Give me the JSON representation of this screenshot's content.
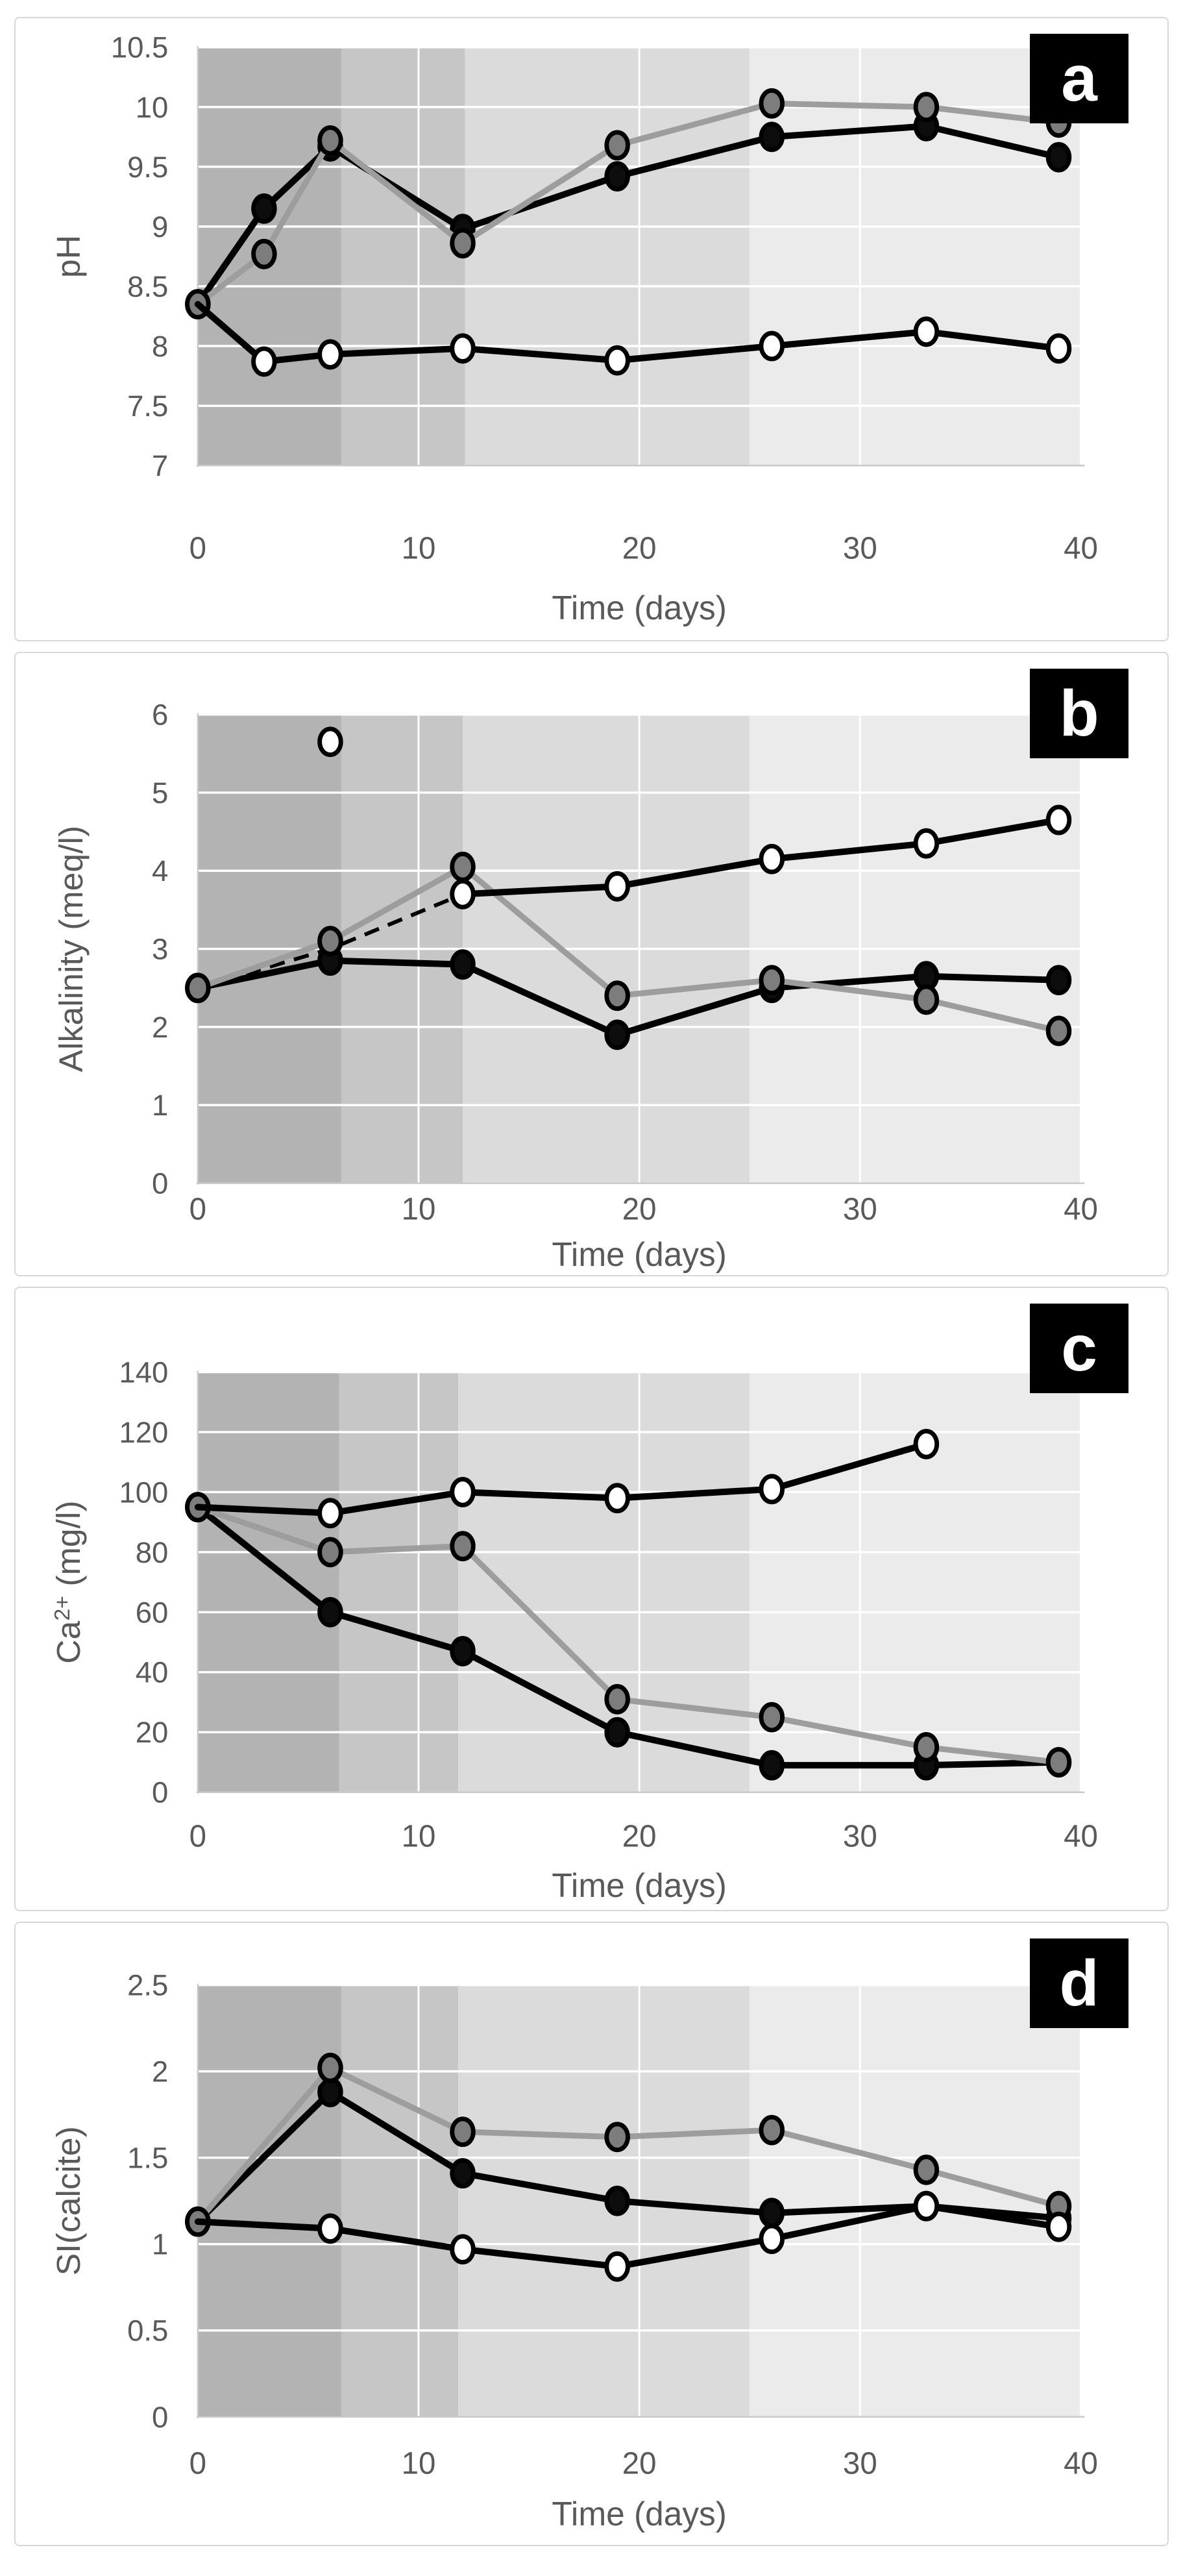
{
  "chart_data": [
    {
      "type": "line",
      "panel_label": "a",
      "xlabel": "Time (days)",
      "ylabel": "pH",
      "xlim": [
        0,
        40
      ],
      "ylim": [
        7,
        10.5
      ],
      "x_ticks": [
        0,
        10,
        20,
        30,
        40
      ],
      "x_tick_labels": [
        "0",
        "10",
        "20",
        "30",
        "40"
      ],
      "y_ticks": [
        7,
        7.5,
        8,
        8.5,
        9,
        9.5,
        10,
        10.5
      ],
      "y_tick_labels": [
        "7",
        "7.5",
        "8",
        "8.5",
        "9",
        "9.5",
        "10",
        "10.5"
      ],
      "grid": true,
      "legend": "none",
      "background_bands": [
        {
          "from": 0,
          "to": 6.5,
          "color": "#b3b3b3"
        },
        {
          "from": 6.5,
          "to": 12.1,
          "color": "#c6c6c6"
        },
        {
          "from": 12.1,
          "to": 25,
          "color": "#dbdbdb"
        },
        {
          "from": 25,
          "to": 40,
          "color": "#ebebeb"
        }
      ],
      "series": [
        {
          "name": "black-filled-circles",
          "line_color": "#000000",
          "line_width": 10,
          "marker_fill": "#0d0d0d",
          "marker_stroke": "#000000",
          "x": [
            0,
            3,
            6,
            12,
            19,
            26,
            33,
            39
          ],
          "y": [
            8.35,
            9.15,
            9.67,
            8.98,
            9.42,
            9.75,
            9.84,
            9.58
          ]
        },
        {
          "name": "gray-filled-circles",
          "line_color": "#9d9d9d",
          "line_width": 9,
          "marker_fill": "#7d7d7d",
          "marker_stroke": "#000000",
          "x": [
            0,
            3,
            6,
            12,
            19,
            26,
            33,
            39
          ],
          "y": [
            8.35,
            8.77,
            9.72,
            8.86,
            9.68,
            10.03,
            10.0,
            9.87
          ]
        },
        {
          "name": "white-open-circles",
          "line_color": "#000000",
          "line_width": 10,
          "marker_fill": "#ffffff",
          "marker_stroke": "#000000",
          "x": [
            0,
            3,
            6,
            12,
            19,
            26,
            33,
            39
          ],
          "y": [
            8.35,
            7.87,
            7.93,
            7.98,
            7.88,
            8.0,
            8.12,
            7.98
          ],
          "no_marker_x": [
            0
          ]
        }
      ]
    },
    {
      "type": "line",
      "panel_label": "b",
      "xlabel": "Time (days)",
      "ylabel": "Alkalinity (meq/l)",
      "xlim": [
        0,
        40
      ],
      "ylim": [
        0,
        6
      ],
      "x_ticks": [
        0,
        10,
        20,
        30,
        40
      ],
      "x_tick_labels": [
        "0",
        "10",
        "20",
        "30",
        "40"
      ],
      "y_ticks": [
        0,
        1,
        2,
        3,
        4,
        5,
        6
      ],
      "y_tick_labels": [
        "0",
        "1",
        "2",
        "3",
        "4",
        "5",
        "6"
      ],
      "grid": true,
      "legend": "none",
      "background_bands": [
        {
          "from": 0,
          "to": 6.5,
          "color": "#b3b3b3"
        },
        {
          "from": 6.5,
          "to": 12,
          "color": "#c6c6c6"
        },
        {
          "from": 12,
          "to": 25,
          "color": "#dbdbdb"
        },
        {
          "from": 25,
          "to": 40,
          "color": "#ebebeb"
        }
      ],
      "dashed_segments": [
        {
          "name": "dashed-interpolation",
          "color": "#000000",
          "x": [
            0,
            6,
            12
          ],
          "y": [
            2.5,
            3.0,
            3.7
          ]
        }
      ],
      "series": [
        {
          "name": "black-filled-circles",
          "line_color": "#000000",
          "line_width": 10,
          "marker_fill": "#0d0d0d",
          "marker_stroke": "#000000",
          "x": [
            0,
            6,
            12,
            19,
            26,
            33,
            39
          ],
          "y": [
            2.5,
            2.85,
            2.8,
            1.9,
            2.5,
            2.65,
            2.6
          ]
        },
        {
          "name": "gray-filled-circles",
          "line_color": "#9d9d9d",
          "line_width": 9,
          "marker_fill": "#7d7d7d",
          "marker_stroke": "#000000",
          "x": [
            0,
            6,
            12,
            19,
            26,
            33,
            39
          ],
          "y": [
            2.5,
            3.1,
            4.05,
            2.4,
            2.6,
            2.35,
            1.95
          ]
        },
        {
          "name": "white-open-circles",
          "line_color": "#000000",
          "line_width": 10,
          "marker_fill": "#ffffff",
          "marker_stroke": "#000000",
          "x": [
            12,
            19,
            26,
            33,
            39
          ],
          "y": [
            3.7,
            3.8,
            4.15,
            4.35,
            4.65
          ],
          "isolated_points": [
            {
              "x": 6,
              "y": 5.65
            }
          ]
        }
      ]
    },
    {
      "type": "line",
      "panel_label": "c",
      "xlabel": "Time (days)",
      "ylabel": "Ca²⁺ (mg/l)",
      "xlim": [
        0,
        40
      ],
      "ylim": [
        0,
        140
      ],
      "x_ticks": [
        0,
        10,
        20,
        30,
        40
      ],
      "x_tick_labels": [
        "0",
        "10",
        "20",
        "30",
        "40"
      ],
      "y_ticks": [
        0,
        20,
        40,
        60,
        80,
        100,
        120,
        140
      ],
      "y_tick_labels": [
        "0",
        "20",
        "40",
        "60",
        "80",
        "100",
        "120",
        "140"
      ],
      "grid": true,
      "legend": "none",
      "background_bands": [
        {
          "from": 0,
          "to": 6.4,
          "color": "#b3b3b3"
        },
        {
          "from": 6.4,
          "to": 11.8,
          "color": "#c6c6c6"
        },
        {
          "from": 11.8,
          "to": 25,
          "color": "#dbdbdb"
        },
        {
          "from": 25,
          "to": 40,
          "color": "#ebebeb"
        }
      ],
      "series": [
        {
          "name": "black-filled-circles",
          "line_color": "#000000",
          "line_width": 10,
          "marker_fill": "#0d0d0d",
          "marker_stroke": "#000000",
          "x": [
            0,
            6,
            12,
            19,
            26,
            33,
            39
          ],
          "y": [
            95,
            60,
            47,
            20,
            9,
            9,
            10
          ]
        },
        {
          "name": "gray-filled-circles",
          "line_color": "#9d9d9d",
          "line_width": 9,
          "marker_fill": "#7d7d7d",
          "marker_stroke": "#000000",
          "x": [
            0,
            6,
            12,
            19,
            26,
            33,
            39
          ],
          "y": [
            95,
            80,
            82,
            31,
            25,
            15,
            10
          ]
        },
        {
          "name": "white-open-circles",
          "line_color": "#000000",
          "line_width": 10,
          "marker_fill": "#ffffff",
          "marker_stroke": "#000000",
          "x": [
            0,
            6,
            12,
            19,
            26,
            33
          ],
          "y": [
            95,
            93,
            100,
            98,
            101,
            116
          ],
          "no_marker_x": [
            0
          ]
        }
      ]
    },
    {
      "type": "line",
      "panel_label": "d",
      "xlabel": "Time (days)",
      "ylabel": "SI(calcite)",
      "xlim": [
        0,
        40
      ],
      "ylim": [
        0,
        2.5
      ],
      "x_ticks": [
        0,
        10,
        20,
        30,
        40
      ],
      "x_tick_labels": [
        "0",
        "10",
        "20",
        "30",
        "40"
      ],
      "y_ticks": [
        0,
        0.5,
        1,
        1.5,
        2,
        2.5
      ],
      "y_tick_labels": [
        "0",
        "0.5",
        "1",
        "1.5",
        "2",
        "2.5"
      ],
      "grid": true,
      "legend": "none",
      "background_bands": [
        {
          "from": 0,
          "to": 6.5,
          "color": "#b3b3b3"
        },
        {
          "from": 6.5,
          "to": 11.8,
          "color": "#c6c6c6"
        },
        {
          "from": 11.8,
          "to": 25,
          "color": "#dbdbdb"
        },
        {
          "from": 25,
          "to": 40,
          "color": "#ebebeb"
        }
      ],
      "series": [
        {
          "name": "black-filled-circles",
          "line_color": "#000000",
          "line_width": 10,
          "marker_fill": "#0d0d0d",
          "marker_stroke": "#000000",
          "x": [
            0,
            6,
            12,
            19,
            26,
            33,
            39
          ],
          "y": [
            1.13,
            1.88,
            1.41,
            1.25,
            1.18,
            1.22,
            1.15
          ]
        },
        {
          "name": "gray-filled-circles",
          "line_color": "#9d9d9d",
          "line_width": 9,
          "marker_fill": "#7d7d7d",
          "marker_stroke": "#000000",
          "x": [
            0,
            6,
            12,
            19,
            26,
            33,
            39
          ],
          "y": [
            1.13,
            2.02,
            1.65,
            1.62,
            1.66,
            1.43,
            1.22
          ]
        },
        {
          "name": "white-open-circles",
          "line_color": "#000000",
          "line_width": 10,
          "marker_fill": "#ffffff",
          "marker_stroke": "#000000",
          "x": [
            0,
            6,
            12,
            19,
            26,
            33,
            39
          ],
          "y": [
            1.13,
            1.09,
            0.97,
            0.87,
            1.03,
            1.22,
            1.1
          ],
          "no_marker_x": [
            0
          ]
        }
      ]
    }
  ],
  "style": {
    "tick_label_color": "#595959",
    "axis_line_color": "#c9c9c9",
    "gridline_color": "#ffffff",
    "badge_bg": "#000000",
    "badge_text_color": "#ffffff"
  }
}
